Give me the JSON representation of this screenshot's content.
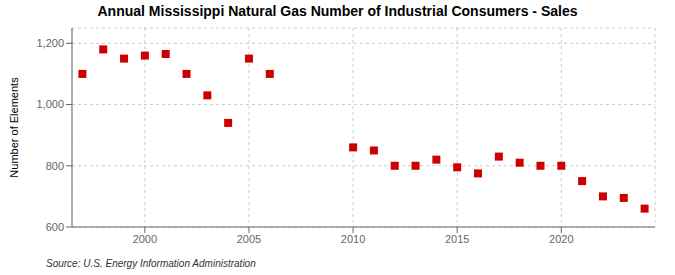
{
  "chart_data": {
    "type": "scatter",
    "title": "Annual Mississippi Natural Gas Number of Industrial Consumers - Sales",
    "ylabel": "Number of Elements",
    "annotations": [
      "Source: U.S. Energy Information Administration"
    ],
    "x": [
      1997,
      1998,
      1999,
      2000,
      2001,
      2002,
      2003,
      2004,
      2005,
      2006,
      2010,
      2011,
      2012,
      2013,
      2014,
      2015,
      2016,
      2017,
      2018,
      2019,
      2020,
      2021,
      2022,
      2023,
      2024
    ],
    "values": [
      1100,
      1180,
      1150,
      1160,
      1165,
      1100,
      1030,
      940,
      1150,
      1100,
      860,
      850,
      800,
      800,
      820,
      795,
      775,
      830,
      810,
      800,
      800,
      750,
      700,
      695,
      660
    ],
    "color": "#cc0000",
    "marker": "square",
    "xlim": [
      1996.5,
      2024.5
    ],
    "ylim": [
      600,
      1250
    ],
    "xticks": [
      2000,
      2005,
      2010,
      2015,
      2020
    ],
    "yticks": [
      600,
      800,
      {
        "value": 1000,
        "label": "1,000"
      },
      {
        "value": 1200,
        "label": "1,200"
      }
    ],
    "grid": true
  }
}
